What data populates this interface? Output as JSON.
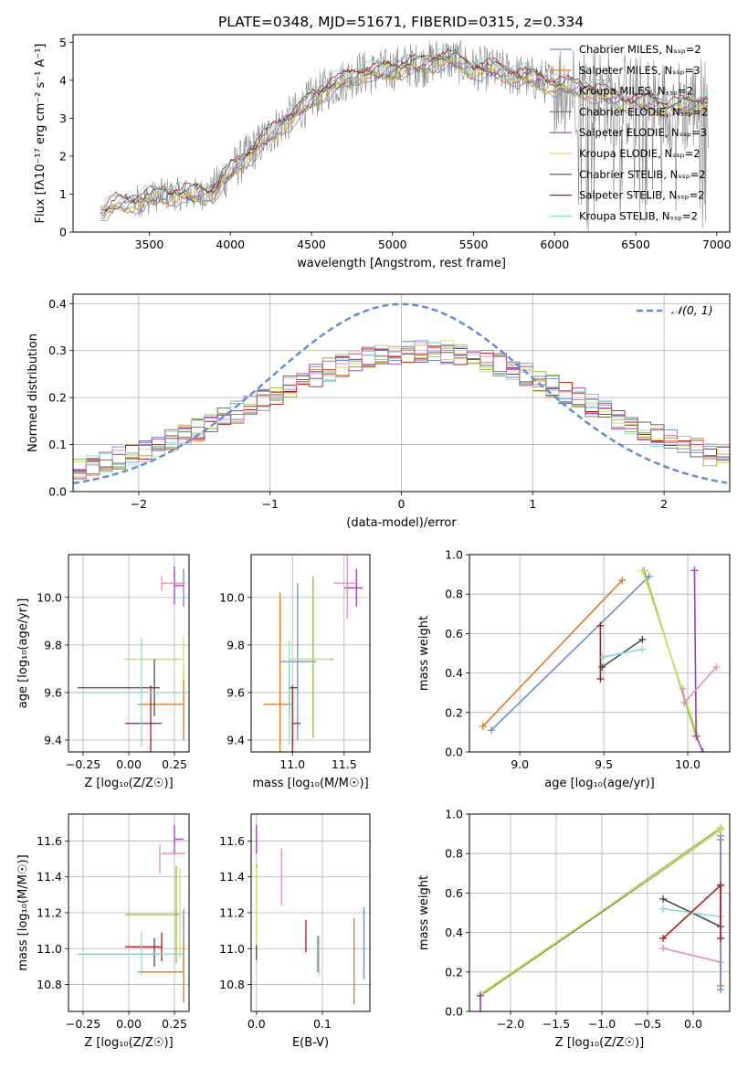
{
  "title": "PLATE=0348, MJD=51671, FIBERID=0315, z=0.334",
  "colors": {
    "c0": "#6a8cd9",
    "c1": "#e07a20",
    "c2": "#8dbd3f",
    "c3": "#7a7a7a",
    "c4": "#9a3fb5",
    "c5": "#d9de62",
    "c6": "#4a4a4a",
    "c7": "#a81d1d",
    "c8": "#8bd9d9",
    "c9": "#e58ac0",
    "data": "#808080",
    "normal": "#5f8bd6"
  },
  "chart_data": [
    {
      "id": "spectrum",
      "type": "line",
      "xlabel": "wavelength [Angstrom, rest frame]",
      "ylabel": "Flux [f$_\\lambda$10$^{-17}$ erg cm$^{-2}$ s$^{-1}$ A$^{-1}$]",
      "ylabel_display": "Flux [fλ10⁻¹⁷ erg cm⁻² s⁻¹ A⁻¹]",
      "xlim": [
        3030,
        7080
      ],
      "ylim": [
        0,
        5.2
      ],
      "xticks": [
        3500,
        4000,
        4500,
        5000,
        5500,
        6000,
        6500,
        7000
      ],
      "yticks": [
        0,
        1,
        2,
        3,
        4,
        5
      ],
      "legend": "top-right",
      "series": [
        {
          "name": "Chabrier MILES, N$_{SSP}$=2",
          "display": "Chabrier MILES, Nₛₛₚ=2",
          "color": "c0"
        },
        {
          "name": "Salpeter MILES, N$_{SSP}$=3",
          "display": "Salpeter MILES, Nₛₛₚ=3",
          "color": "c1"
        },
        {
          "name": "Kroupa MILES, N$_{SSP}$=2",
          "display": "Kroupa MILES, Nₛₛₚ=2",
          "color": "c2"
        },
        {
          "name": "Chabrier ELODIE, N$_{SSP}$=2",
          "display": "Chabrier ELODIE, Nₛₛₚ=2",
          "color": "c3"
        },
        {
          "name": "Salpeter ELODIE, N$_{SSP}$=3",
          "display": "Salpeter ELODIE, Nₛₛₚ=3",
          "color": "c4"
        },
        {
          "name": "Kroupa ELODIE, N$_{SSP}$=2",
          "display": "Kroupa ELODIE, Nₛₛₚ=2",
          "color": "c5"
        },
        {
          "name": "Chabrier STELIB, N$_{SSP}$=2",
          "display": "Chabrier STELIB, Nₛₛₚ=2",
          "color": "c6"
        },
        {
          "name": "Salpeter STELIB, N$_{SSP}$=2",
          "display": "Salpeter STELIB, Nₛₛₚ=2",
          "color": "c7"
        },
        {
          "name": "Kroupa STELIB, N$_{SSP}$=2",
          "display": "Kroupa STELIB, Nₛₛₚ=2",
          "color": "c8"
        }
      ],
      "continuum": [
        [
          3200,
          0.5
        ],
        [
          3300,
          0.75
        ],
        [
          3400,
          0.8
        ],
        [
          3500,
          0.9
        ],
        [
          3600,
          1.0
        ],
        [
          3700,
          1.0
        ],
        [
          3800,
          1.0
        ],
        [
          3900,
          1.1
        ],
        [
          4000,
          1.6
        ],
        [
          4100,
          2.0
        ],
        [
          4200,
          2.4
        ],
        [
          4300,
          2.8
        ],
        [
          4400,
          3.1
        ],
        [
          4500,
          3.5
        ],
        [
          4600,
          3.8
        ],
        [
          4700,
          4.0
        ],
        [
          4800,
          4.2
        ],
        [
          4900,
          4.2
        ],
        [
          5000,
          4.3
        ],
        [
          5100,
          4.4
        ],
        [
          5200,
          4.4
        ],
        [
          5300,
          4.6
        ],
        [
          5400,
          4.5
        ],
        [
          5500,
          4.3
        ],
        [
          5600,
          4.3
        ],
        [
          5700,
          4.2
        ],
        [
          5800,
          4.1
        ],
        [
          5900,
          4.0
        ],
        [
          6000,
          3.9
        ],
        [
          6100,
          3.8
        ],
        [
          6200,
          3.8
        ],
        [
          6300,
          3.6
        ],
        [
          6400,
          3.5
        ],
        [
          6500,
          3.4
        ],
        [
          6600,
          3.4
        ],
        [
          6700,
          3.3
        ],
        [
          6800,
          3.3
        ],
        [
          6900,
          3.4
        ]
      ]
    },
    {
      "id": "residuals",
      "type": "step",
      "xlabel": "(data-model)/error",
      "ylabel": "Normed distribution",
      "xlim": [
        -2.5,
        2.5
      ],
      "ylim": [
        0,
        0.42
      ],
      "xticks": [
        -2,
        -1,
        0,
        1,
        2
      ],
      "yticks": [
        0.0,
        0.1,
        0.2,
        0.3,
        0.4
      ],
      "legend": "top-right",
      "normal": {
        "name": "$\\mathcal{N}(0,1)$",
        "display": "𝒩(0, 1)",
        "mu": 0,
        "sigma": 1
      }
    },
    {
      "id": "z-age",
      "type": "errorbar",
      "xlabel": "Z [log$_{10}$(Z/Z$_\\odot$)]",
      "xlabel_display": "Z [log₁₀(Z/Z☉)]",
      "ylabel": "age  [log$_{10}$(age/yr)]",
      "ylabel_display": "age  [log₁₀(age/yr)]",
      "xlim": [
        -0.33,
        0.33
      ],
      "ylim": [
        9.35,
        10.18
      ],
      "xticks": [
        -0.25,
        0.0,
        0.25
      ],
      "xtick_labels": [
        "−0.25",
        "0.00",
        "0.25"
      ],
      "yticks": [
        9.4,
        9.6,
        9.8,
        10.0
      ],
      "points": [
        {
          "c": "c0",
          "x": 0.3,
          "xe": 0.0,
          "y": 10.04,
          "ye": 0.08
        },
        {
          "c": "c1",
          "x": 0.3,
          "xe": 0.0,
          "y": 9.55,
          "ye": 0.15
        },
        {
          "c": "c1",
          "x": 0.05,
          "xe": 0.25,
          "y": 9.55,
          "ye": 0.0
        },
        {
          "c": "c2",
          "x": -0.02,
          "xe": 0.3,
          "y": 9.74,
          "ye": 0.0
        },
        {
          "c": "c4",
          "x": 0.25,
          "xe": 0.05,
          "y": 10.05,
          "ye": 0.08
        },
        {
          "c": "c5",
          "x": -0.03,
          "xe": 0.33,
          "y": 9.74,
          "ye": 0.0
        },
        {
          "c": "c5",
          "x": 0.3,
          "xe": 0.0,
          "y": 9.74,
          "ye": 0.09
        },
        {
          "c": "c6",
          "x": -0.28,
          "xe": 0.45,
          "y": 9.62,
          "ye": 0.0
        },
        {
          "c": "c6",
          "x": 0.14,
          "xe": 0.0,
          "y": 9.62,
          "ye": 0.12
        },
        {
          "c": "c7",
          "x": -0.02,
          "xe": 0.2,
          "y": 9.47,
          "ye": 0.0
        },
        {
          "c": "c7",
          "x": 0.12,
          "xe": 0.0,
          "y": 9.47,
          "ye": 0.16
        },
        {
          "c": "c8",
          "x": -0.28,
          "xe": 0.58,
          "y": 9.6,
          "ye": 0.0
        },
        {
          "c": "c8",
          "x": 0.07,
          "xe": 0.0,
          "y": 9.6,
          "ye": 0.23
        },
        {
          "c": "c9",
          "x": 0.18,
          "xe": 0.13,
          "y": 10.06,
          "ye": 0.03
        }
      ]
    },
    {
      "id": "mass-age",
      "type": "errorbar",
      "xlabel": "mass [log$_{10}$(M/M$_\\odot$)]",
      "xlabel_display": "mass [log₁₀(M/M☉)]",
      "xlim": [
        10.6,
        11.75
      ],
      "ylim": [
        9.35,
        10.18
      ],
      "xticks": [
        11.0,
        11.5
      ],
      "yticks": [
        9.4,
        9.6,
        9.8,
        10.0
      ],
      "points": [
        {
          "c": "c0",
          "x": 11.05,
          "xe": 0.0,
          "y": 9.73,
          "ye": 0.33
        },
        {
          "c": "c0",
          "x": 10.88,
          "xe": 0.35,
          "y": 9.73,
          "ye": 0.0
        },
        {
          "c": "c1",
          "x": 10.88,
          "xe": 0.0,
          "y": 9.55,
          "ye": 0.47
        },
        {
          "c": "c1",
          "x": 10.72,
          "xe": 0.27,
          "y": 9.55,
          "ye": 0.0
        },
        {
          "c": "c2",
          "x": 11.2,
          "xe": 0.0,
          "y": 9.75,
          "ye": 0.34
        },
        {
          "c": "c2",
          "x": 10.98,
          "xe": 0.42,
          "y": 9.74,
          "ye": 0.0
        },
        {
          "c": "c4",
          "x": 11.62,
          "xe": 0.0,
          "y": 10.04,
          "ye": 0.08
        },
        {
          "c": "c4",
          "x": 11.5,
          "xe": 0.18,
          "y": 10.04,
          "ye": 0.0
        },
        {
          "c": "c5",
          "x": 10.98,
          "xe": 0.38,
          "y": 9.74,
          "ye": 0.0
        },
        {
          "c": "c6",
          "x": 10.97,
          "xe": 0.08,
          "y": 9.62,
          "ye": 0.12
        },
        {
          "c": "c7",
          "x": 11.0,
          "xe": 0.08,
          "y": 9.47,
          "ye": 0.0
        },
        {
          "c": "c7",
          "x": 11.0,
          "xe": 0.0,
          "y": 9.47,
          "ye": 0.16
        },
        {
          "c": "c8",
          "x": 10.97,
          "xe": 0.0,
          "y": 9.6,
          "ye": 0.22
        },
        {
          "c": "c9",
          "x": 11.53,
          "xe": 0.0,
          "y": 10.06,
          "ye": 0.15
        },
        {
          "c": "c9",
          "x": 11.4,
          "xe": 0.24,
          "y": 10.06,
          "ye": 0.0
        }
      ]
    },
    {
      "id": "age-weight",
      "type": "line",
      "xlabel": "age  [log$_{10}$(age/yr)]",
      "xlabel_display": "age  [log₁₀(age/yr)]",
      "ylabel": "mass weight",
      "xlim": [
        8.7,
        10.25
      ],
      "ylim": [
        0,
        1.0
      ],
      "xticks": [
        9.0,
        9.5,
        10.0
      ],
      "yticks": [
        0.0,
        0.2,
        0.4,
        0.6,
        0.8,
        1.0
      ],
      "lines": [
        {
          "c": "c1",
          "pts": [
            [
              8.78,
              0.13
            ],
            [
              9.61,
              0.87
            ]
          ]
        },
        {
          "c": "c0",
          "pts": [
            [
              8.83,
              0.11
            ],
            [
              9.77,
              0.89
            ]
          ]
        },
        {
          "c": "c7",
          "pts": [
            [
              9.48,
              0.37
            ],
            [
              9.48,
              0.64
            ]
          ]
        },
        {
          "c": "c6",
          "pts": [
            [
              9.49,
              0.43
            ],
            [
              9.73,
              0.57
            ]
          ]
        },
        {
          "c": "c8",
          "pts": [
            [
              9.49,
              0.48
            ],
            [
              9.73,
              0.52
            ]
          ]
        },
        {
          "c": "c2",
          "pts": [
            [
              9.74,
              0.92
            ],
            [
              10.05,
              0.08
            ]
          ]
        },
        {
          "c": "c5",
          "pts": [
            [
              9.73,
              0.92
            ],
            [
              10.06,
              0.08
            ]
          ]
        },
        {
          "c": "c4",
          "pts": [
            [
              10.04,
              0.92
            ],
            [
              10.05,
              0.08
            ],
            [
              10.09,
              0.0
            ]
          ]
        },
        {
          "c": "c9",
          "pts": [
            [
              9.97,
              0.32
            ],
            [
              9.98,
              0.25
            ],
            [
              10.17,
              0.43
            ]
          ]
        }
      ]
    },
    {
      "id": "z-mass",
      "type": "errorbar",
      "xlabel": "Z [log$_{10}$(Z/Z$_\\odot$)]",
      "xlabel_display": "Z [log₁₀(Z/Z☉)]",
      "ylabel": "mass [log$_{10}$(M/M$_\\odot$)]",
      "ylabel_display": "mass [log₁₀(M/M☉)]",
      "xlim": [
        -0.33,
        0.33
      ],
      "ylim": [
        10.65,
        11.75
      ],
      "xticks": [
        -0.25,
        0.0,
        0.25
      ],
      "xtick_labels": [
        "−0.25",
        "0.00",
        "0.25"
      ],
      "yticks": [
        10.8,
        11.0,
        11.2,
        11.4,
        11.6
      ],
      "points": [
        {
          "c": "c0",
          "x": 0.3,
          "xe": 0.0,
          "y": 11.05,
          "ye": 0.17
        },
        {
          "c": "c1",
          "x": 0.3,
          "xe": 0.0,
          "y": 10.87,
          "ye": 0.17
        },
        {
          "c": "c1",
          "x": 0.05,
          "xe": 0.25,
          "y": 10.87,
          "ye": 0.0
        },
        {
          "c": "c2",
          "x": -0.02,
          "xe": 0.3,
          "y": 11.19,
          "ye": 0.0
        },
        {
          "c": "c2",
          "x": 0.26,
          "xe": 0.0,
          "y": 11.19,
          "ye": 0.27
        },
        {
          "c": "c4",
          "x": 0.25,
          "xe": 0.05,
          "y": 11.61,
          "ye": 0.08
        },
        {
          "c": "c5",
          "x": 0.28,
          "xe": 0.0,
          "y": 11.2,
          "ye": 0.25
        },
        {
          "c": "c6",
          "x": -0.28,
          "xe": 0.45,
          "y": 10.97,
          "ye": 0.0
        },
        {
          "c": "c6",
          "x": 0.14,
          "xe": 0.0,
          "y": 10.98,
          "ye": 0.08
        },
        {
          "c": "c7",
          "x": -0.02,
          "xe": 0.2,
          "y": 11.01,
          "ye": 0.0
        },
        {
          "c": "c7",
          "x": 0.18,
          "xe": 0.0,
          "y": 11.01,
          "ye": 0.08
        },
        {
          "c": "c8",
          "x": -0.28,
          "xe": 0.58,
          "y": 10.97,
          "ye": 0.0
        },
        {
          "c": "c8",
          "x": 0.07,
          "xe": 0.0,
          "y": 10.97,
          "ye": 0.12
        },
        {
          "c": "c9",
          "x": 0.18,
          "xe": 0.13,
          "y": 11.53,
          "ye": 0.0
        },
        {
          "c": "c9",
          "x": 0.17,
          "xe": 0.0,
          "y": 11.5,
          "ye": 0.08
        }
      ]
    },
    {
      "id": "ebv-mass",
      "type": "errorbar",
      "xlabel": "E(B-V)",
      "xlim": [
        -0.008,
        0.172
      ],
      "ylim": [
        10.65,
        11.75
      ],
      "xticks": [
        0.0,
        0.1
      ],
      "yticks": [
        10.8,
        11.0,
        11.2,
        11.4,
        11.6
      ],
      "points": [
        {
          "c": "c4",
          "x": 0.0,
          "xe": 0.0,
          "y": 11.61,
          "ye": 0.08
        },
        {
          "c": "c2",
          "x": 0.0,
          "xe": 0.0,
          "y": 11.2,
          "ye": 0.27
        },
        {
          "c": "c5",
          "x": 0.0,
          "xe": 0.0,
          "y": 11.2,
          "ye": 0.25
        },
        {
          "c": "c6",
          "x": 0.0,
          "xe": 0.0,
          "y": 10.98,
          "ye": 0.04
        },
        {
          "c": "c9",
          "x": 0.038,
          "xe": 0.0,
          "y": 11.4,
          "ye": 0.16
        },
        {
          "c": "c7",
          "x": 0.075,
          "xe": 0.0,
          "y": 11.07,
          "ye": 0.09
        },
        {
          "c": "c3",
          "x": 0.093,
          "xe": 0.0,
          "y": 10.97,
          "ye": 0.1
        },
        {
          "c": "c8",
          "x": 0.095,
          "xe": 0.0,
          "y": 10.96,
          "ye": 0.11
        },
        {
          "c": "c1",
          "x": 0.148,
          "xe": 0.0,
          "y": 10.93,
          "ye": 0.24
        },
        {
          "c": "c0",
          "x": 0.163,
          "xe": 0.0,
          "y": 11.03,
          "ye": 0.2
        }
      ]
    },
    {
      "id": "z-weight",
      "type": "line",
      "xlabel": "Z [log$_{10}$(Z/Z$_\\odot$)]",
      "xlabel_display": "Z [log₁₀(Z/Z☉)]",
      "ylabel": "mass weight",
      "xlim": [
        -2.45,
        0.4
      ],
      "ylim": [
        0,
        1.0
      ],
      "xticks": [
        -2.0,
        -1.5,
        -1.0,
        -0.5,
        0.0
      ],
      "xtick_labels": [
        "−2.0",
        "−1.5",
        "−1.0",
        "−0.5",
        "0.0"
      ],
      "yticks": [
        0.0,
        0.2,
        0.4,
        0.6,
        0.8,
        1.0
      ],
      "lines": [
        {
          "c": "c6",
          "pts": [
            [
              -2.33,
              0.08
            ],
            [
              0.3,
              0.92
            ]
          ]
        },
        {
          "c": "c2",
          "pts": [
            [
              -2.33,
              0.08
            ],
            [
              0.3,
              0.93
            ]
          ]
        },
        {
          "c": "c5",
          "pts": [
            [
              -2.33,
              0.09
            ],
            [
              0.3,
              0.92
            ]
          ]
        },
        {
          "c": "c4",
          "pts": [
            [
              -2.33,
              0.0
            ],
            [
              -2.33,
              0.08
            ]
          ]
        },
        {
          "c": "c6",
          "pts": [
            [
              -0.33,
              0.57
            ],
            [
              0.3,
              0.43
            ]
          ]
        },
        {
          "c": "c8",
          "pts": [
            [
              -0.33,
              0.52
            ],
            [
              0.3,
              0.48
            ]
          ]
        },
        {
          "c": "c7",
          "pts": [
            [
              -0.33,
              0.37
            ],
            [
              0.3,
              0.64
            ]
          ]
        },
        {
          "c": "c9",
          "pts": [
            [
              -0.33,
              0.32
            ],
            [
              0.3,
              0.25
            ]
          ]
        },
        {
          "c": "c1",
          "pts": [
            [
              0.3,
              0.13
            ],
            [
              0.3,
              0.87
            ]
          ]
        },
        {
          "c": "c0",
          "pts": [
            [
              0.3,
              0.11
            ],
            [
              0.3,
              0.89
            ]
          ]
        },
        {
          "c": "c7",
          "pts": [
            [
              0.3,
              0.37
            ],
            [
              0.3,
              0.64
            ]
          ]
        }
      ]
    }
  ]
}
